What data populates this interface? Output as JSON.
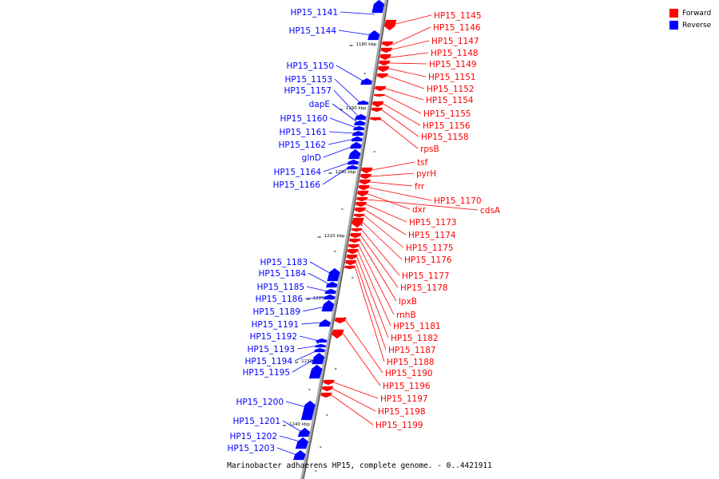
{
  "caption": "Marinobacter adhaerens HP15, complete genome. - 0..4421911",
  "colors": {
    "forward": "#ff0000",
    "reverse": "#0000ff",
    "axis": "#808080"
  },
  "legend": [
    {
      "label": "Forward",
      "color": "#ff0000"
    },
    {
      "label": "Reverse",
      "color": "#0000ff"
    }
  ],
  "scale_ticks": [
    "1180 kbp",
    "1190 kbp",
    "1200 kbp",
    "1210 kbp",
    "1220 kbp",
    "1230 kbp",
    "1240 kbp"
  ],
  "reverse_genes": [
    "HP15_1141",
    "HP15_1144",
    "HP15_1150",
    "HP15_1153",
    "HP15_1157",
    "dapE",
    "HP15_1160",
    "HP15_1161",
    "HP15_1162",
    "glnD",
    "HP15_1164",
    "HP15_1166",
    "HP15_1183",
    "HP15_1184",
    "HP15_1185",
    "HP15_1186",
    "HP15_1189",
    "HP15_1191",
    "HP15_1192",
    "HP15_1193",
    "HP15_1194",
    "HP15_1195",
    "HP15_1200",
    "HP15_1201",
    "HP15_1202",
    "HP15_1203"
  ],
  "forward_genes": [
    "HP15_1145",
    "HP15_1146",
    "HP15_1147",
    "HP15_1148",
    "HP15_1149",
    "HP15_1151",
    "HP15_1152",
    "HP15_1154",
    "HP15_1155",
    "HP15_1156",
    "HP15_1158",
    "rpsB",
    "tsf",
    "pyrH",
    "frr",
    "HP15_1170",
    "dxr",
    "cdsA",
    "HP15_1173",
    "HP15_1174",
    "HP15_1175",
    "HP15_1176",
    "HP15_1177",
    "HP15_1178",
    "lpxB",
    "rnhB",
    "HP15_1181",
    "HP15_1182",
    "HP15_1187",
    "HP15_1188",
    "HP15_1190",
    "HP15_1196",
    "HP15_1197",
    "HP15_1198",
    "HP15_1199"
  ]
}
